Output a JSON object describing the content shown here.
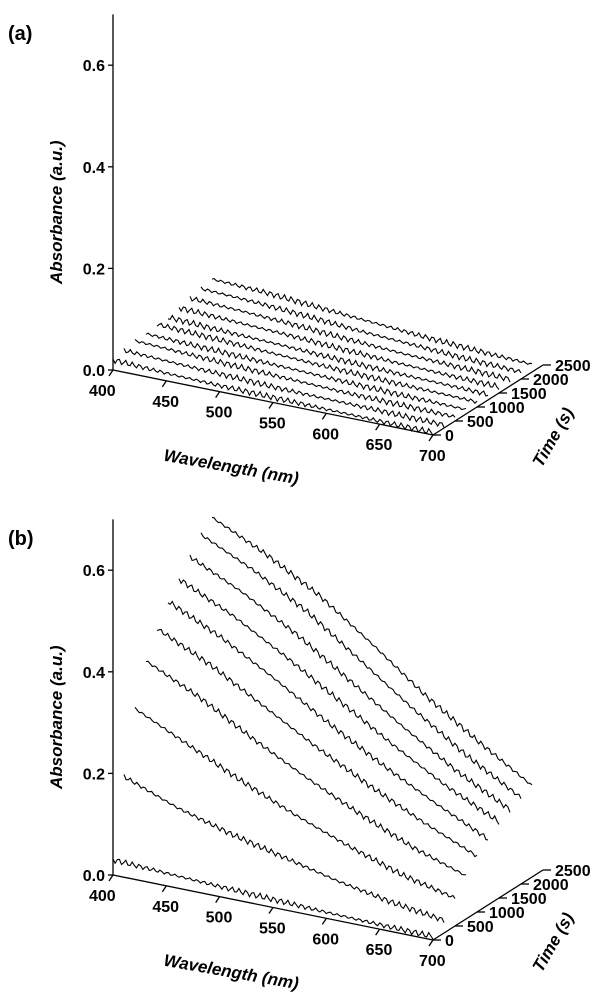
{
  "chart_data": [
    {
      "type": "line",
      "panel_label": "(a)",
      "xlabel": "Wavelength (nm)",
      "ylabel": "Absorbance (a.u.)",
      "zlabel": "Time (s)",
      "x_ticks": [
        "400",
        "450",
        "500",
        "550",
        "600",
        "650",
        "700"
      ],
      "y_ticks": [
        "0.0",
        "0.2",
        "0.4",
        "0.6"
      ],
      "z_ticks": [
        "0",
        "500",
        "1000",
        "1500",
        "2000",
        "2500"
      ],
      "xlim": [
        400,
        700
      ],
      "ylim": [
        0,
        0.7
      ],
      "zlim": [
        0,
        2500
      ],
      "series": [
        {
          "time": 0,
          "values": [
            0.02,
            0.015,
            0.012,
            0.01,
            0.008,
            0.006,
            0.005
          ]
        },
        {
          "time": 250,
          "values": [
            0.025,
            0.02,
            0.016,
            0.012,
            0.01,
            0.008,
            0.006
          ]
        },
        {
          "time": 500,
          "values": [
            0.03,
            0.025,
            0.02,
            0.016,
            0.012,
            0.01,
            0.008
          ]
        },
        {
          "time": 750,
          "values": [
            0.03,
            0.026,
            0.022,
            0.018,
            0.014,
            0.011,
            0.009
          ]
        },
        {
          "time": 1000,
          "values": [
            0.035,
            0.03,
            0.025,
            0.02,
            0.016,
            0.013,
            0.01
          ]
        },
        {
          "time": 1250,
          "values": [
            0.035,
            0.03,
            0.026,
            0.021,
            0.017,
            0.014,
            0.011
          ]
        },
        {
          "time": 1500,
          "values": [
            0.04,
            0.035,
            0.03,
            0.024,
            0.019,
            0.015,
            0.012
          ]
        },
        {
          "time": 1750,
          "values": [
            0.045,
            0.04,
            0.034,
            0.027,
            0.021,
            0.017,
            0.013
          ]
        },
        {
          "time": 2000,
          "values": [
            0.05,
            0.045,
            0.038,
            0.03,
            0.024,
            0.018,
            0.014
          ]
        },
        {
          "time": 2250,
          "values": [
            0.055,
            0.05,
            0.042,
            0.034,
            0.026,
            0.02,
            0.015
          ]
        }
      ]
    },
    {
      "type": "line",
      "panel_label": "(b)",
      "xlabel": "Wavelength (nm)",
      "ylabel": "Absorbance (a.u.)",
      "zlabel": "Time (s)",
      "x_ticks": [
        "400",
        "450",
        "500",
        "550",
        "600",
        "650",
        "700"
      ],
      "y_ticks": [
        "0.0",
        "0.2",
        "0.4",
        "0.6"
      ],
      "z_ticks": [
        "0",
        "500",
        "1000",
        "1500",
        "2000",
        "2500"
      ],
      "xlim": [
        400,
        700
      ],
      "ylim": [
        0,
        0.7
      ],
      "zlim": [
        0,
        2500
      ],
      "series": [
        {
          "time": 0,
          "values": [
            0.03,
            0.025,
            0.02,
            0.016,
            0.012,
            0.009,
            0.007
          ]
        },
        {
          "time": 250,
          "values": [
            0.18,
            0.14,
            0.11,
            0.085,
            0.06,
            0.04,
            0.025
          ]
        },
        {
          "time": 500,
          "values": [
            0.3,
            0.25,
            0.2,
            0.155,
            0.115,
            0.08,
            0.055
          ]
        },
        {
          "time": 750,
          "values": [
            0.38,
            0.33,
            0.27,
            0.215,
            0.165,
            0.12,
            0.085
          ]
        },
        {
          "time": 1000,
          "values": [
            0.43,
            0.38,
            0.32,
            0.26,
            0.205,
            0.155,
            0.11
          ]
        },
        {
          "time": 1250,
          "values": [
            0.47,
            0.42,
            0.36,
            0.295,
            0.235,
            0.18,
            0.13
          ]
        },
        {
          "time": 1500,
          "values": [
            0.5,
            0.45,
            0.39,
            0.325,
            0.26,
            0.2,
            0.15
          ]
        },
        {
          "time": 1750,
          "values": [
            0.53,
            0.48,
            0.42,
            0.35,
            0.28,
            0.215,
            0.16
          ]
        },
        {
          "time": 2000,
          "values": [
            0.56,
            0.51,
            0.45,
            0.375,
            0.3,
            0.23,
            0.17
          ]
        },
        {
          "time": 2250,
          "values": [
            0.58,
            0.53,
            0.47,
            0.395,
            0.315,
            0.245,
            0.18
          ]
        }
      ]
    }
  ]
}
